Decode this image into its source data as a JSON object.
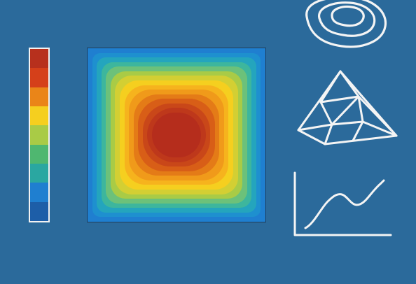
{
  "colorbar": {
    "colors": [
      "#b7301d",
      "#d5401a",
      "#ea8518",
      "#f5cf1f",
      "#a9cb46",
      "#4fb770",
      "#2aa7a1",
      "#1f7fd0",
      "#1d5ea8"
    ]
  },
  "heatmap": {
    "colors": [
      "#1f7fd0",
      "#1e90cf",
      "#24a5bd",
      "#3db69d",
      "#6cc17a",
      "#a9cb46",
      "#d3cf33",
      "#f5cf1f",
      "#f6b31d",
      "#f09a1a",
      "#e47b17",
      "#d85e17",
      "#c94719",
      "#be381b",
      "#b52d1c"
    ]
  },
  "icons": {
    "contour": "contour-lines-icon",
    "mesh": "triangular-mesh-icon",
    "plot": "line-plot-icon"
  }
}
